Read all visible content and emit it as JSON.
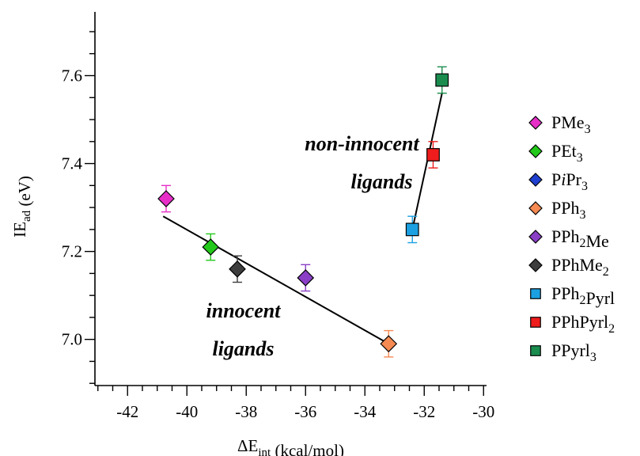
{
  "chart_data": {
    "type": "scatter",
    "xlabel": {
      "main": "ΔE",
      "sub": "int",
      "rest": " (kcal/mol)"
    },
    "ylabel": {
      "main": "IE",
      "sub": "ad",
      "rest": " (eV)"
    },
    "xlim": [
      -43.1,
      -29.9
    ],
    "ylim": [
      6.895,
      7.745
    ],
    "xticks": [
      -42,
      -40,
      -38,
      -36,
      -34,
      -32,
      -30
    ],
    "yticks": [
      7.0,
      7.2,
      7.4,
      7.6
    ],
    "xtick_labels": [
      "-42",
      "-40",
      "-38",
      "-36",
      "-34",
      "-32",
      "-30"
    ],
    "ytick_labels": [
      "7.0",
      "7.2",
      "7.4",
      "7.6"
    ],
    "grid": false,
    "legend_position": "right",
    "series": [
      {
        "name": [
          "PMe",
          {
            "sub": "3"
          }
        ],
        "marker": "diamond",
        "color": "#e72fc8",
        "x": -40.7,
        "y": 7.32,
        "err": 0.03
      },
      {
        "name": [
          "PEt",
          {
            "sub": "3"
          }
        ],
        "marker": "diamond",
        "color": "#23c91a",
        "x": -39.2,
        "y": 7.21,
        "err": 0.03
      },
      {
        "name": [
          "P",
          {
            "it": "i"
          },
          "Pr",
          {
            "sub": "3"
          }
        ],
        "marker": "diamond",
        "color": "#1f3fcf",
        "x": null,
        "y": null,
        "err": null
      },
      {
        "name": [
          "PPh",
          {
            "sub": "3"
          }
        ],
        "marker": "diamond",
        "color": "#f58a52",
        "x": -33.2,
        "y": 6.99,
        "err": 0.03
      },
      {
        "name": [
          "PPh",
          {
            "sub": "2"
          },
          "Me"
        ],
        "marker": "diamond",
        "color": "#8a3fc6",
        "x": -36.0,
        "y": 7.14,
        "err": 0.03
      },
      {
        "name": [
          "PPhMe",
          {
            "sub": "2"
          }
        ],
        "marker": "diamond",
        "color": "#3d3d3d",
        "x": -38.3,
        "y": 7.16,
        "err": 0.03
      },
      {
        "name": [
          "PPh",
          {
            "sub": "2"
          },
          "Pyrl"
        ],
        "marker": "square",
        "color": "#1ba1e2",
        "x": -32.4,
        "y": 7.25,
        "err": 0.03
      },
      {
        "name": [
          "PPhPyrl",
          {
            "sub": "2"
          }
        ],
        "marker": "square",
        "color": "#ee1c1c",
        "x": -31.7,
        "y": 7.42,
        "err": 0.03
      },
      {
        "name": [
          "PPyrl",
          {
            "sub": "3"
          }
        ],
        "marker": "square",
        "color": "#1a8c4e",
        "x": -31.4,
        "y": 7.59,
        "err": 0.03
      }
    ],
    "fit_lines": [
      {
        "name": "innocent",
        "x": [
          -40.8,
          -33.2
        ],
        "y": [
          7.28,
          6.99
        ]
      },
      {
        "name": "non-innocent",
        "x": [
          -32.4,
          -31.4
        ],
        "y": [
          7.25,
          7.56
        ]
      }
    ],
    "annotations": [
      {
        "lines": [
          "non-innocent",
          "ligands"
        ],
        "at": [
          -34.1,
          7.43
        ]
      },
      {
        "lines": [
          "innocent",
          "ligands"
        ],
        "at": [
          -38.1,
          7.05
        ]
      }
    ]
  }
}
